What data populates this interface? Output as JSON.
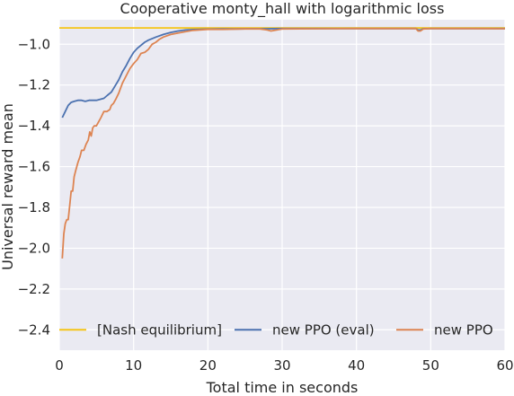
{
  "chart_data": {
    "type": "line",
    "title": "Cooperative monty_hall with logarithmic loss",
    "xlabel": "Total time in seconds",
    "ylabel": "Universal reward mean",
    "xlim": [
      0,
      60
    ],
    "ylim": [
      -2.5,
      -0.88
    ],
    "x_ticks": [
      0,
      10,
      20,
      30,
      40,
      50,
      60
    ],
    "x_tick_labels": [
      "0",
      "10",
      "20",
      "30",
      "40",
      "50",
      "60"
    ],
    "y_ticks": [
      -2.4,
      -2.2,
      -2.0,
      -1.8,
      -1.6,
      -1.4,
      -1.2,
      -1.0
    ],
    "y_tick_labels": [
      "−2.4",
      "−2.2",
      "−2.0",
      "−1.8",
      "−1.6",
      "−1.4",
      "−1.2",
      "−1.0"
    ],
    "grid": true,
    "legend_position": "lower-center",
    "series": [
      {
        "name": "[Nash equilibrium]",
        "color": "#f5c518",
        "x": [
          0,
          60
        ],
        "y": [
          -0.92,
          -0.92
        ]
      },
      {
        "name": "new PPO (eval)",
        "color": "#4c72b0",
        "x": [
          0.4,
          0.8,
          1.2,
          1.6,
          2.0,
          2.5,
          3.0,
          3.5,
          4.0,
          4.5,
          5.0,
          5.5,
          6.0,
          6.5,
          7.0,
          7.5,
          8.0,
          8.5,
          9.0,
          9.5,
          10.0,
          10.5,
          11.0,
          11.5,
          12.0,
          13.0,
          14.0,
          15.0,
          16.0,
          17.0,
          18.0,
          20.0,
          22.0,
          24.0,
          26.0,
          28.0,
          30.0,
          35.0,
          40.0,
          45.0,
          48.0,
          48.3,
          48.6,
          49.0,
          50.0,
          55.0,
          60.0
        ],
        "y": [
          -1.36,
          -1.33,
          -1.3,
          -1.285,
          -1.28,
          -1.275,
          -1.275,
          -1.28,
          -1.275,
          -1.275,
          -1.275,
          -1.27,
          -1.265,
          -1.25,
          -1.235,
          -1.205,
          -1.175,
          -1.135,
          -1.105,
          -1.07,
          -1.04,
          -1.02,
          -1.005,
          -0.99,
          -0.98,
          -0.965,
          -0.952,
          -0.942,
          -0.935,
          -0.93,
          -0.928,
          -0.926,
          -0.925,
          -0.925,
          -0.924,
          -0.924,
          -0.923,
          -0.923,
          -0.923,
          -0.923,
          -0.923,
          -0.93,
          -0.93,
          -0.924,
          -0.923,
          -0.923,
          -0.923
        ]
      },
      {
        "name": "new PPO",
        "color": "#dd8452",
        "x": [
          0.4,
          0.6,
          0.8,
          1.0,
          1.2,
          1.4,
          1.6,
          1.8,
          2.0,
          2.2,
          2.5,
          2.8,
          3.0,
          3.3,
          3.6,
          3.9,
          4.1,
          4.3,
          4.5,
          4.7,
          5.0,
          5.3,
          5.6,
          6.0,
          6.4,
          6.8,
          7.0,
          7.3,
          7.6,
          8.0,
          8.5,
          9.0,
          9.5,
          10.0,
          10.5,
          11.0,
          11.5,
          12.0,
          12.5,
          13.0,
          13.5,
          14.0,
          15.0,
          16.0,
          17.0,
          18.0,
          20.0,
          22.0,
          25.0,
          27.0,
          28.0,
          28.5,
          30.0,
          35.0,
          40.0,
          45.0,
          48.0,
          48.3,
          48.6,
          49.0,
          50.0,
          55.0,
          60.0
        ],
        "y": [
          -2.05,
          -1.93,
          -1.88,
          -1.86,
          -1.86,
          -1.79,
          -1.72,
          -1.72,
          -1.65,
          -1.62,
          -1.58,
          -1.55,
          -1.52,
          -1.52,
          -1.49,
          -1.47,
          -1.43,
          -1.45,
          -1.41,
          -1.4,
          -1.4,
          -1.38,
          -1.36,
          -1.33,
          -1.33,
          -1.32,
          -1.3,
          -1.29,
          -1.27,
          -1.24,
          -1.19,
          -1.155,
          -1.12,
          -1.095,
          -1.075,
          -1.045,
          -1.04,
          -1.025,
          -1.0,
          -0.99,
          -0.975,
          -0.965,
          -0.952,
          -0.945,
          -0.938,
          -0.932,
          -0.927,
          -0.927,
          -0.925,
          -0.925,
          -0.93,
          -0.935,
          -0.925,
          -0.924,
          -0.923,
          -0.923,
          -0.923,
          -0.935,
          -0.935,
          -0.925,
          -0.923,
          -0.923,
          -0.924
        ]
      }
    ]
  }
}
